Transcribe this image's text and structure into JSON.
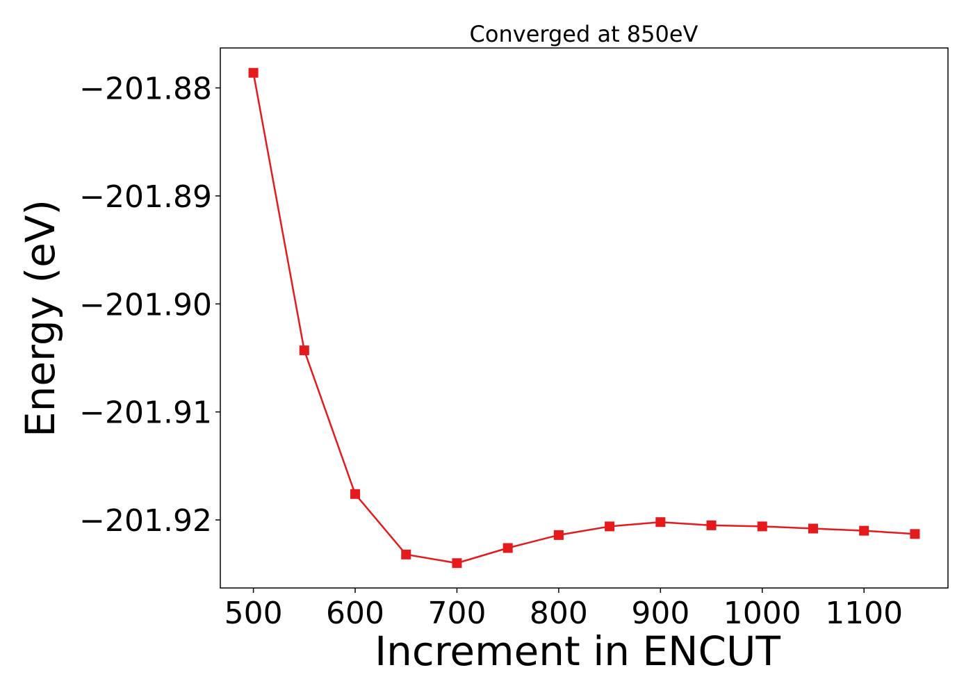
{
  "chart_data": {
    "type": "line",
    "title": "Converged at 850eV",
    "xlabel": "Increment in ENCUT",
    "ylabel": "Energy (eV)",
    "xlim": [
      467.5,
      1182.5
    ],
    "ylim": [
      -201.9263,
      -201.8763
    ],
    "xticks": [
      500,
      600,
      700,
      800,
      900,
      1000,
      1100
    ],
    "xtick_labels": [
      "500",
      "600",
      "700",
      "800",
      "900",
      "1000",
      "1100"
    ],
    "yticks": [
      -201.88,
      -201.89,
      -201.9,
      -201.91,
      -201.92
    ],
    "ytick_labels": [
      "−201.88",
      "−201.89",
      "−201.90",
      "−201.91",
      "−201.92"
    ],
    "grid": false,
    "series": [
      {
        "marker": "square",
        "color": "#e41a1c",
        "x": [
          500,
          550,
          600,
          650,
          700,
          750,
          800,
          850,
          900,
          950,
          1000,
          1050,
          1100,
          1150
        ],
        "y": [
          -201.8786,
          -201.9043,
          -201.9176,
          -201.9232,
          -201.924,
          -201.9226,
          -201.9214,
          -201.9206,
          -201.9202,
          -201.9205,
          -201.9206,
          -201.9208,
          -201.921,
          -201.9213
        ]
      }
    ]
  }
}
